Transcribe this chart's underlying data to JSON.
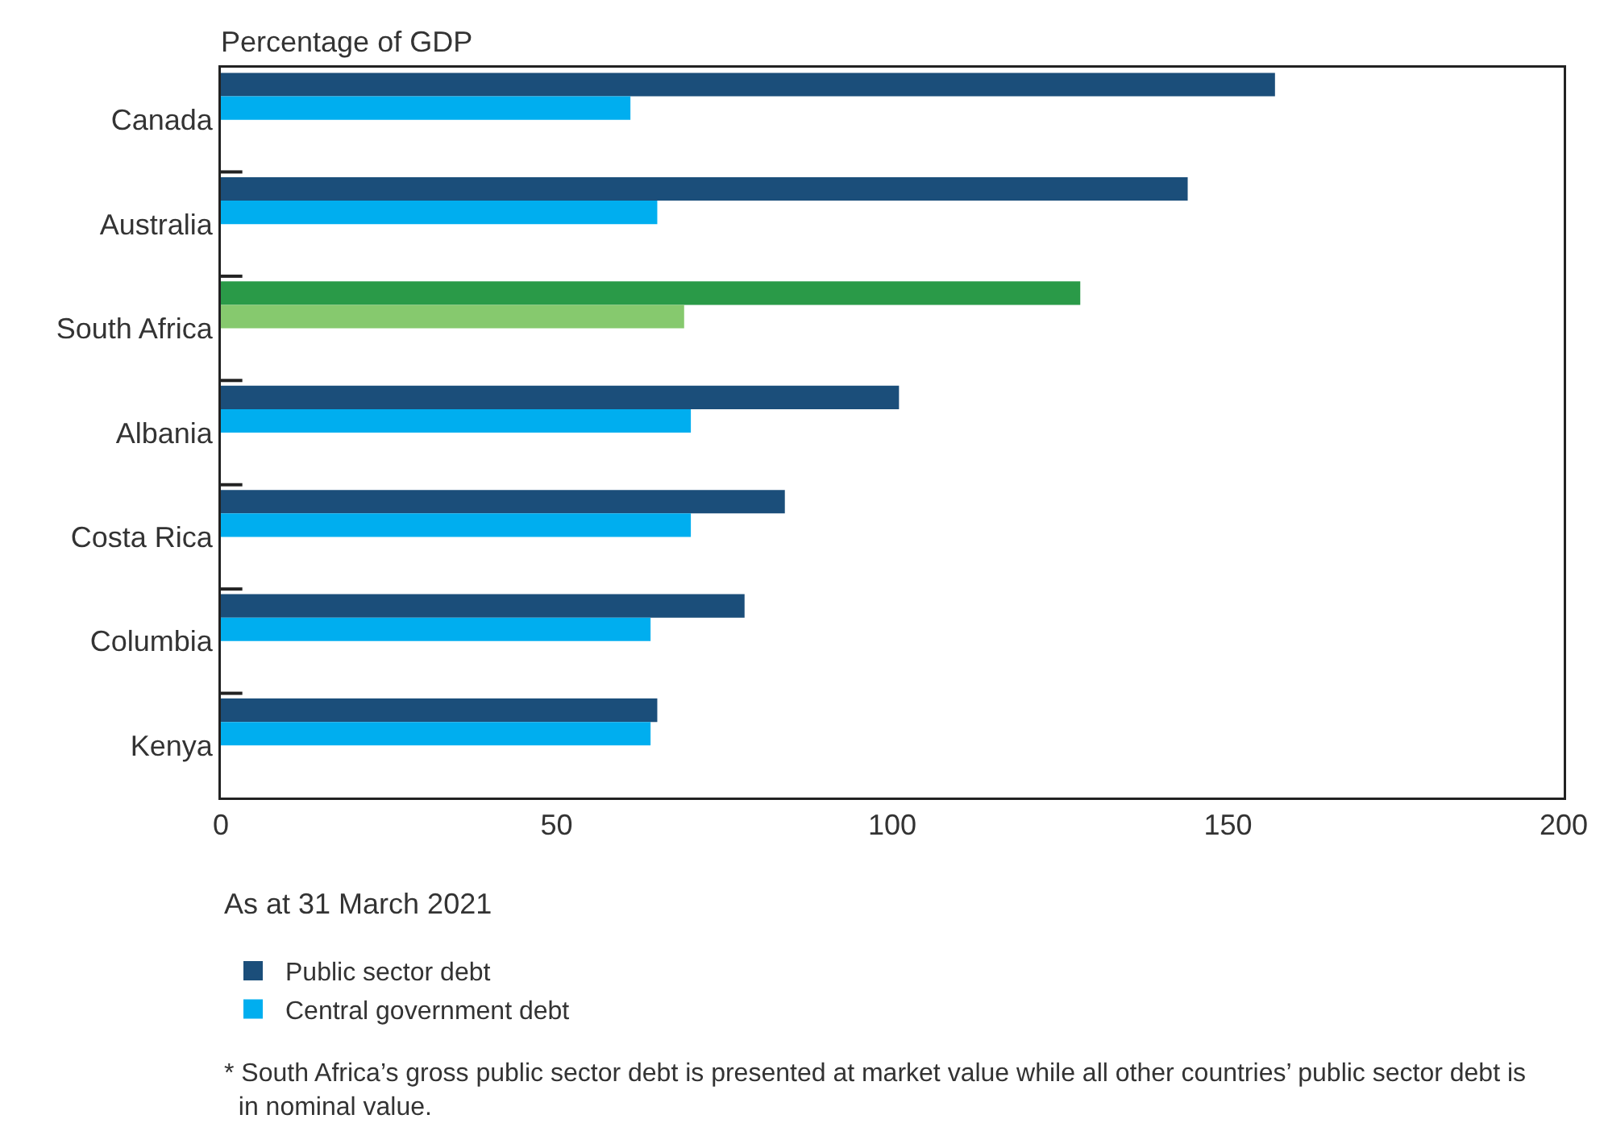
{
  "chart_data": {
    "type": "bar",
    "orientation": "horizontal",
    "xlabel": "Percentage of GDP",
    "categories": [
      "Canada",
      "Australia",
      "South Africa",
      "Albania",
      "Costa Rica",
      "Columbia",
      "Kenya"
    ],
    "series": [
      {
        "name": "Public sector debt",
        "color": "#1b4e7a",
        "colors": [
          "#1b4e7a",
          "#1b4e7a",
          "#2a9a48",
          "#1b4e7a",
          "#1b4e7a",
          "#1b4e7a",
          "#1b4e7a"
        ],
        "values": [
          157,
          144,
          128,
          101,
          84,
          78,
          65
        ]
      },
      {
        "name": "Central government debt",
        "color": "#00aeef",
        "colors": [
          "#00aeef",
          "#00aeef",
          "#86c96e",
          "#00aeef",
          "#00aeef",
          "#00aeef",
          "#00aeef"
        ],
        "values": [
          61,
          65,
          69,
          70,
          70,
          64,
          64
        ]
      }
    ],
    "xlim": [
      0,
      200
    ],
    "xticks": [
      0,
      50,
      100,
      150,
      200
    ],
    "grid": false,
    "legend": "bottom left",
    "annotations": [
      "As at 31 March 2021",
      "* South Africa’s gross public sector debt is presented at market value while all other countries’ public sector debt is in nominal value."
    ]
  }
}
